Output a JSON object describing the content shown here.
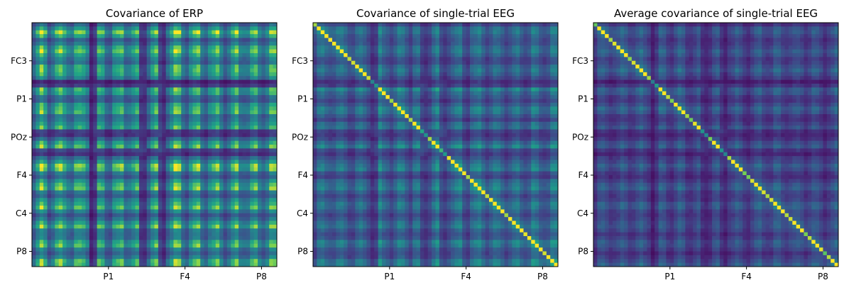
{
  "chart_data": [
    {
      "type": "heatmap",
      "title": "Covariance of ERP",
      "size": 64,
      "xticks": [
        "P1",
        "F4",
        "P8"
      ],
      "yticks": [
        "FC3",
        "P1",
        "POz",
        "F4",
        "C4",
        "P8"
      ],
      "xtick_index": [
        20,
        40,
        60
      ],
      "ytick_index": [
        10,
        20,
        30,
        40,
        50,
        60
      ],
      "colormap": "viridis",
      "grid": false
    },
    {
      "type": "heatmap",
      "title": "Covariance of single-trial EEG",
      "size": 64,
      "xticks": [
        "P1",
        "F4",
        "P8"
      ],
      "yticks": [
        "FC3",
        "P1",
        "POz",
        "F4",
        "C4",
        "P8"
      ],
      "xtick_index": [
        20,
        40,
        60
      ],
      "ytick_index": [
        10,
        20,
        30,
        40,
        50,
        60
      ],
      "colormap": "viridis",
      "grid": false
    },
    {
      "type": "heatmap",
      "title": "Average covariance of single-trial EEG",
      "size": 64,
      "xticks": [
        "P1",
        "F4",
        "P8"
      ],
      "yticks": [
        "FC3",
        "P1",
        "POz",
        "F4",
        "C4",
        "P8"
      ],
      "xtick_index": [
        20,
        40,
        60
      ],
      "ytick_index": [
        10,
        20,
        30,
        40,
        50,
        60
      ],
      "colormap": "viridis",
      "grid": false
    }
  ]
}
